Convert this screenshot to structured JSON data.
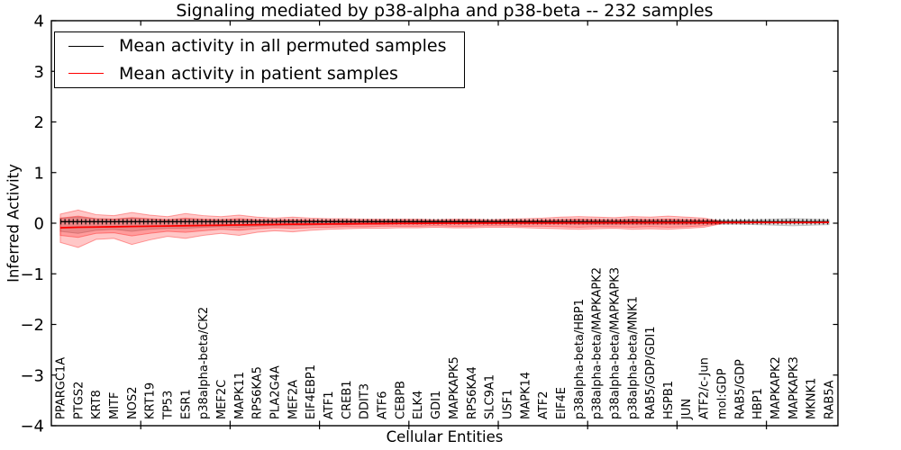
{
  "chart_data": {
    "type": "line",
    "title": "Signaling mediated by p38-alpha and p38-beta -- 232 samples",
    "xlabel": "Cellular Entities",
    "ylabel": "Inferred Activity",
    "ylim": [
      -4,
      4
    ],
    "yticks": [
      "4",
      "3",
      "2",
      "1",
      "0",
      "−1",
      "−2",
      "−3",
      "−4"
    ],
    "grid": false,
    "legend_position": "upper left",
    "categories": [
      "PPARGC1A",
      "PTGS2",
      "KRT8",
      "MITF",
      "NOS2",
      "KRT19",
      "TP53",
      "ESR1",
      "p38alpha-beta/CK2",
      "MEF2C",
      "MAPK11",
      "RPS6KA5",
      "PLA2G4A",
      "MEF2A",
      "EIF4EBP1",
      "ATF1",
      "CREB1",
      "DDIT3",
      "ATF6",
      "CEBPB",
      "ELK4",
      "GDI1",
      "MAPKAPK5",
      "RPS6KA4",
      "SLC9A1",
      "USF1",
      "MAPK14",
      "ATF2",
      "EIF4E",
      "p38alpha-beta/HBP1",
      "p38alpha-beta/MAPKAPK2",
      "p38alpha-beta/MAPKAPK3",
      "p38alpha-beta/MNK1",
      "RAB5/GDP/GDI1",
      "HSPB1",
      "JUN",
      "ATF2/c-Jun",
      "mol:GDP",
      "RAB5/GDP",
      "HBP1",
      "MAPKAPK2",
      "MAPKAPK3",
      "MKNK1",
      "RAB5A"
    ],
    "series": [
      {
        "name": "Mean activity in all permuted samples",
        "color": "#000000",
        "marker": "vertical-dash",
        "values": [
          0.03,
          0.03,
          0.03,
          0.03,
          0.03,
          0.03,
          0.03,
          0.03,
          0.03,
          0.03,
          0.03,
          0.03,
          0.03,
          0.03,
          0.03,
          0.03,
          0.03,
          0.03,
          0.03,
          0.03,
          0.03,
          0.03,
          0.03,
          0.03,
          0.03,
          0.03,
          0.03,
          0.03,
          0.03,
          0.03,
          0.03,
          0.03,
          0.03,
          0.03,
          0.03,
          0.03,
          0.03,
          0.03,
          0.03,
          0.03,
          0.03,
          0.03,
          0.03,
          0.03
        ]
      },
      {
        "name": "Mean activity in patient samples",
        "color": "#ff0000",
        "marker": "none",
        "values": [
          -0.09,
          -0.08,
          -0.075,
          -0.07,
          -0.065,
          -0.06,
          -0.055,
          -0.05,
          -0.045,
          -0.04,
          -0.035,
          -0.03,
          -0.025,
          -0.02,
          -0.018,
          -0.015,
          -0.012,
          -0.01,
          -0.008,
          -0.005,
          -0.003,
          0,
          0,
          0.002,
          0.003,
          0.004,
          0.005,
          0.005,
          0.006,
          0.007,
          0.008,
          0.008,
          0.009,
          0.01,
          0.01,
          0.01,
          0.01,
          0.012,
          0.012,
          0.013,
          0.013,
          0.014,
          0.014,
          0.015
        ]
      }
    ],
    "bands": [
      {
        "name": "permuted-samples-range",
        "color": "#888888",
        "opacity": 0.28,
        "start_index": 0,
        "upper": [
          0.1,
          0.12,
          0.09,
          0.08,
          0.1,
          0.08,
          0.07,
          0.08,
          0.07,
          0.07,
          0.07,
          0.06,
          0.06,
          0.06,
          0.06,
          0.06,
          0.06,
          0.06,
          0.06,
          0.06,
          0.06,
          0.06,
          0.06,
          0.06,
          0.06,
          0.06,
          0.06,
          0.06,
          0.07,
          0.07,
          0.07,
          0.07,
          0.07,
          0.07,
          0.07,
          0.07,
          0.06,
          0.06,
          0.06,
          0.07,
          0.08,
          0.09,
          0.08,
          0.07
        ],
        "lower": [
          -0.16,
          -0.2,
          -0.14,
          -0.12,
          -0.16,
          -0.12,
          -0.1,
          -0.1,
          -0.08,
          -0.07,
          -0.08,
          -0.06,
          -0.05,
          -0.05,
          -0.04,
          -0.03,
          -0.03,
          -0.02,
          -0.02,
          -0.01,
          -0.01,
          -0.01,
          -0.01,
          -0.01,
          -0.01,
          -0.01,
          -0.01,
          -0.01,
          -0.01,
          -0.02,
          -0.02,
          -0.02,
          -0.02,
          -0.02,
          -0.02,
          -0.02,
          -0.01,
          -0.02,
          -0.02,
          -0.03,
          -0.04,
          -0.05,
          -0.04,
          -0.03
        ]
      },
      {
        "name": "patient-samples-outer-band",
        "color": "#ff0000",
        "opacity": 0.22,
        "start_index": 0,
        "upper": [
          0.18,
          0.26,
          0.17,
          0.15,
          0.21,
          0.16,
          0.13,
          0.19,
          0.15,
          0.13,
          0.16,
          0.12,
          0.1,
          0.12,
          0.1,
          0.09,
          0.09,
          0.08,
          0.08,
          0.08,
          0.08,
          0.07,
          0.08,
          0.08,
          0.07,
          0.08,
          0.09,
          0.1,
          0.12,
          0.13,
          0.12,
          0.11,
          0.13,
          0.12,
          0.14,
          0.12,
          0.1,
          0.04
        ],
        "lower": [
          -0.38,
          -0.48,
          -0.32,
          -0.3,
          -0.42,
          -0.33,
          -0.26,
          -0.3,
          -0.24,
          -0.2,
          -0.24,
          -0.18,
          -0.15,
          -0.17,
          -0.14,
          -0.12,
          -0.11,
          -0.1,
          -0.1,
          -0.09,
          -0.09,
          -0.08,
          -0.09,
          -0.09,
          -0.08,
          -0.08,
          -0.09,
          -0.1,
          -0.11,
          -0.12,
          -0.11,
          -0.1,
          -0.12,
          -0.11,
          -0.12,
          -0.1,
          -0.08,
          -0.01
        ]
      },
      {
        "name": "patient-samples-inner-band",
        "color": "#ff0000",
        "opacity": 0.22,
        "start_index": 0,
        "upper": [
          0.1,
          0.14,
          0.09,
          0.08,
          0.11,
          0.09,
          0.07,
          0.1,
          0.08,
          0.07,
          0.09,
          0.07,
          0.06,
          0.07,
          0.06,
          0.05,
          0.05,
          0.05,
          0.05,
          0.05,
          0.05,
          0.04,
          0.05,
          0.05,
          0.04,
          0.05,
          0.05,
          0.06,
          0.07,
          0.08,
          0.07,
          0.06,
          0.08,
          0.07,
          0.08,
          0.07,
          0.06,
          0.03
        ],
        "lower": [
          -0.24,
          -0.28,
          -0.2,
          -0.19,
          -0.25,
          -0.2,
          -0.16,
          -0.18,
          -0.15,
          -0.12,
          -0.14,
          -0.11,
          -0.09,
          -0.1,
          -0.09,
          -0.08,
          -0.07,
          -0.07,
          -0.06,
          -0.06,
          -0.06,
          -0.05,
          -0.06,
          -0.06,
          -0.05,
          -0.05,
          -0.06,
          -0.06,
          -0.07,
          -0.08,
          -0.07,
          -0.07,
          -0.08,
          -0.07,
          -0.08,
          -0.07,
          -0.05,
          0.0
        ]
      }
    ]
  }
}
